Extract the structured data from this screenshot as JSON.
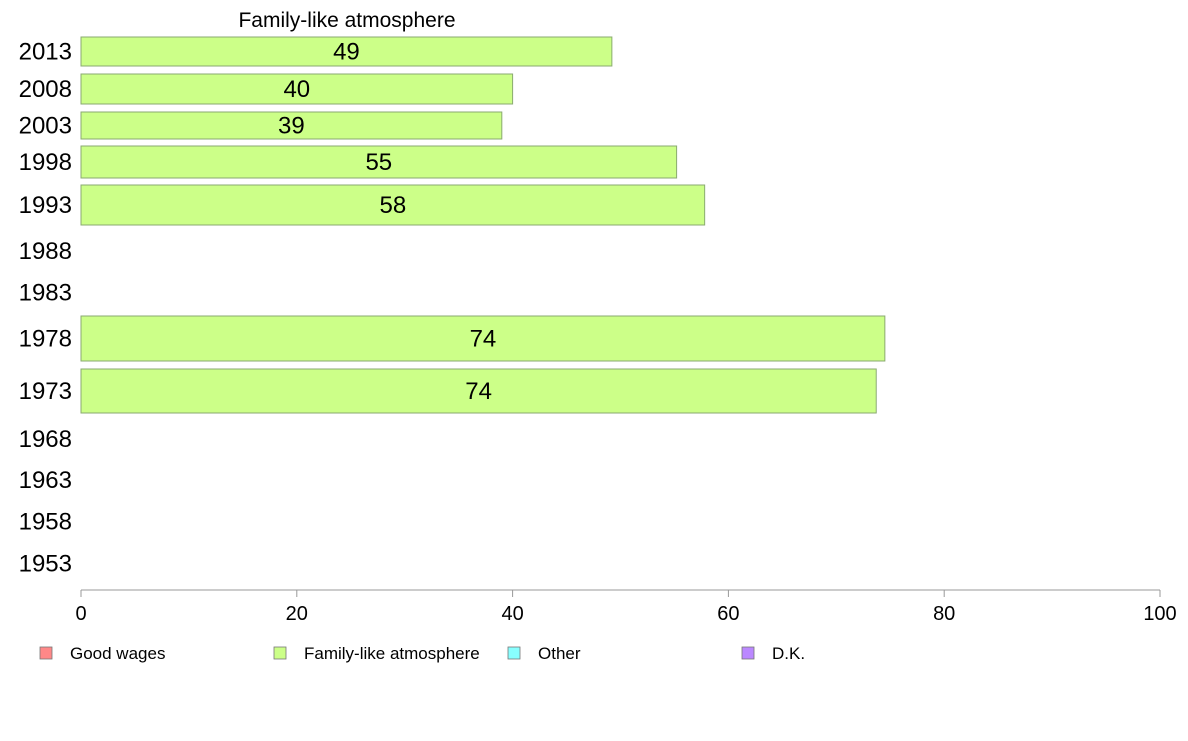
{
  "chart_data": {
    "type": "bar",
    "orientation": "horizontal",
    "title": "Family-like atmosphere",
    "categories": [
      "2013",
      "2008",
      "2003",
      "1998",
      "1993",
      "1988",
      "1983",
      "1978",
      "1973",
      "1968",
      "1963",
      "1958",
      "1953"
    ],
    "series": [
      {
        "name": "Family-like atmosphere",
        "color": "#ccff88",
        "values": [
          49.2,
          40,
          39,
          55.2,
          57.8,
          null,
          null,
          74.5,
          73.7,
          null,
          null,
          null,
          null
        ],
        "labels": [
          "49",
          "40",
          "39",
          "55",
          "58",
          "",
          "",
          "74",
          "74",
          "",
          "",
          "",
          ""
        ]
      }
    ],
    "xlim": [
      0,
      100
    ],
    "xticks": [
      "0",
      "20",
      "40",
      "60",
      "80",
      "100"
    ],
    "grid": false,
    "legend": {
      "placement": "bottom",
      "items": [
        {
          "label": "Good wages",
          "color": "#ff8888"
        },
        {
          "label": "Family-like atmosphere",
          "color": "#ccff88"
        },
        {
          "label": "Other",
          "color": "#88ffff"
        },
        {
          "label": "D.K.",
          "color": "#bb88ff"
        }
      ]
    }
  }
}
